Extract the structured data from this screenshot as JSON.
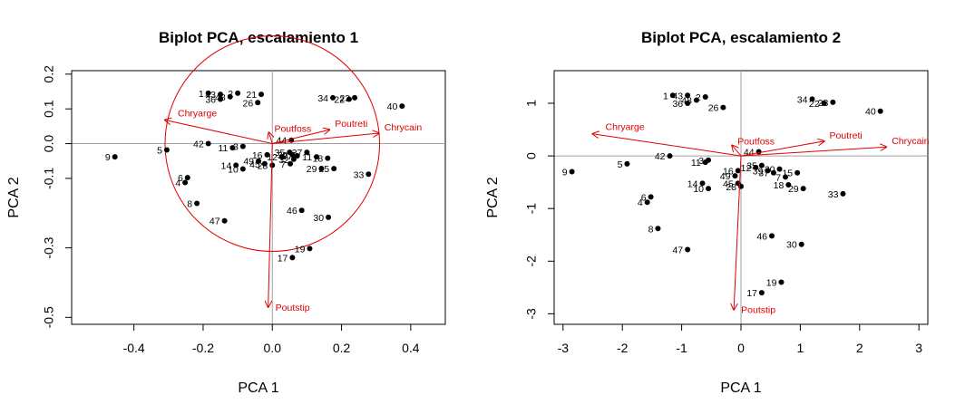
{
  "chart_data": [
    {
      "type": "scatter",
      "title": "Biplot PCA, escalamiento 1",
      "xlabel": "PCA  1",
      "ylabel": "PCA  2",
      "xlim": [
        -0.58,
        0.5
      ],
      "ylim": [
        -0.52,
        0.21
      ],
      "xticks": [
        -0.4,
        -0.2,
        0.0,
        0.2,
        0.4
      ],
      "xtick_labels": [
        "-0.4",
        "-0.2",
        "0.0",
        "0.2",
        "0.4"
      ],
      "yticks": [
        -0.5,
        -0.3,
        -0.1,
        0.0,
        0.1,
        0.2
      ],
      "ytick_labels": [
        "-0.5",
        "-0.3",
        "-0.1",
        "0.0",
        "0.1",
        "0.2"
      ],
      "grid": false,
      "reference_lines": {
        "x": 0,
        "y": 0
      },
      "circle": {
        "cx": 0,
        "cy": 0,
        "r": 0.31
      },
      "points": [
        {
          "label": "9",
          "x": -0.455,
          "y": -0.038
        },
        {
          "label": "5",
          "x": -0.305,
          "y": -0.018
        },
        {
          "label": "6",
          "x": -0.245,
          "y": -0.098
        },
        {
          "label": "4",
          "x": -0.252,
          "y": -0.112
        },
        {
          "label": "8",
          "x": -0.218,
          "y": -0.172
        },
        {
          "label": "47",
          "x": -0.138,
          "y": -0.222
        },
        {
          "label": "42",
          "x": -0.185,
          "y": 0.0
        },
        {
          "label": "11",
          "x": -0.115,
          "y": -0.012
        },
        {
          "label": "3",
          "x": -0.085,
          "y": -0.008
        },
        {
          "label": "14",
          "x": -0.105,
          "y": -0.062
        },
        {
          "label": "10",
          "x": -0.085,
          "y": -0.073
        },
        {
          "label": "16",
          "x": -0.015,
          "y": -0.032
        },
        {
          "label": "49",
          "x": -0.04,
          "y": -0.05
        },
        {
          "label": "45",
          "x": -0.022,
          "y": -0.058
        },
        {
          "label": "28",
          "x": 0.0,
          "y": -0.062
        },
        {
          "label": "12",
          "x": 0.028,
          "y": -0.038
        },
        {
          "label": "35",
          "x": 0.05,
          "y": -0.025
        },
        {
          "label": "39",
          "x": 0.058,
          "y": -0.032
        },
        {
          "label": "27",
          "x": 0.072,
          "y": -0.035
        },
        {
          "label": "32",
          "x": 0.062,
          "y": -0.045
        },
        {
          "label": "7",
          "x": 0.052,
          "y": -0.058
        },
        {
          "label": "37",
          "x": 0.1,
          "y": -0.025
        },
        {
          "label": "11",
          "x": 0.128,
          "y": -0.038
        },
        {
          "label": "29",
          "x": 0.142,
          "y": -0.072
        },
        {
          "label": "18",
          "x": 0.16,
          "y": -0.042
        },
        {
          "label": "25",
          "x": 0.178,
          "y": -0.072
        },
        {
          "label": "33",
          "x": 0.278,
          "y": -0.088
        },
        {
          "label": "44",
          "x": 0.055,
          "y": 0.01
        },
        {
          "label": "46",
          "x": 0.085,
          "y": -0.192
        },
        {
          "label": "30",
          "x": 0.162,
          "y": -0.212
        },
        {
          "label": "19",
          "x": 0.108,
          "y": -0.302
        },
        {
          "label": "17",
          "x": 0.058,
          "y": -0.328
        },
        {
          "label": "1",
          "x": -0.185,
          "y": 0.145
        },
        {
          "label": "43",
          "x": -0.15,
          "y": 0.142
        },
        {
          "label": "36",
          "x": -0.15,
          "y": 0.128
        },
        {
          "label": "48",
          "x": -0.122,
          "y": 0.135
        },
        {
          "label": "2",
          "x": -0.1,
          "y": 0.145
        },
        {
          "label": "26",
          "x": -0.042,
          "y": 0.118
        },
        {
          "label": "21",
          "x": -0.032,
          "y": 0.142
        },
        {
          "label": "34",
          "x": 0.175,
          "y": 0.132
        },
        {
          "label": "22",
          "x": 0.222,
          "y": 0.128
        },
        {
          "label": "23",
          "x": 0.238,
          "y": 0.132
        },
        {
          "label": "40",
          "x": 0.375,
          "y": 0.108
        }
      ],
      "vectors": [
        {
          "label": "Chryarge",
          "x": -0.31,
          "y": 0.068
        },
        {
          "label": "Poutfoss",
          "x": -0.01,
          "y": 0.032
        },
        {
          "label": "Poutreti",
          "x": 0.165,
          "y": 0.04
        },
        {
          "label": "Chrycain",
          "x": 0.308,
          "y": 0.03
        },
        {
          "label": "Poutstip",
          "x": -0.012,
          "y": -0.47
        }
      ]
    },
    {
      "type": "scatter",
      "title": "Biplot PCA, escalamiento 2",
      "xlabel": "PCA  1",
      "ylabel": "PCA  2",
      "xlim": [
        -3.15,
        3.15
      ],
      "ylim": [
        -3.2,
        1.62
      ],
      "xticks": [
        -3,
        -2,
        -1,
        0,
        1,
        2,
        3
      ],
      "xtick_labels": [
        "-3",
        "-2",
        "-1",
        "0",
        "1",
        "2",
        "3"
      ],
      "yticks": [
        -3,
        -2,
        -1,
        0,
        1
      ],
      "ytick_labels": [
        "-3",
        "-2",
        "-1",
        "0",
        "1"
      ],
      "grid": false,
      "reference_lines": {
        "x": 0,
        "y": 0
      },
      "points": [
        {
          "label": "9",
          "x": -2.85,
          "y": -0.3
        },
        {
          "label": "5",
          "x": -1.92,
          "y": -0.15
        },
        {
          "label": "42",
          "x": -1.2,
          "y": 0.0
        },
        {
          "label": "11",
          "x": -0.6,
          "y": -0.12
        },
        {
          "label": "3",
          "x": -0.55,
          "y": -0.08
        },
        {
          "label": "6",
          "x": -1.52,
          "y": -0.78
        },
        {
          "label": "4",
          "x": -1.58,
          "y": -0.88
        },
        {
          "label": "8",
          "x": -1.4,
          "y": -1.38
        },
        {
          "label": "47",
          "x": -0.9,
          "y": -1.78
        },
        {
          "label": "16",
          "x": -0.05,
          "y": -0.28
        },
        {
          "label": "49",
          "x": -0.1,
          "y": -0.38
        },
        {
          "label": "14",
          "x": -0.65,
          "y": -0.52
        },
        {
          "label": "10",
          "x": -0.55,
          "y": -0.62
        },
        {
          "label": "45",
          "x": -0.05,
          "y": -0.52
        },
        {
          "label": "28",
          "x": 0.0,
          "y": -0.58
        },
        {
          "label": "12",
          "x": 0.25,
          "y": -0.22
        },
        {
          "label": "35",
          "x": 0.35,
          "y": -0.18
        },
        {
          "label": "39",
          "x": 0.45,
          "y": -0.28
        },
        {
          "label": "37",
          "x": 0.55,
          "y": -0.32
        },
        {
          "label": "20",
          "x": 0.65,
          "y": -0.25
        },
        {
          "label": "7",
          "x": 0.75,
          "y": -0.4
        },
        {
          "label": "18",
          "x": 0.8,
          "y": -0.55
        },
        {
          "label": "15",
          "x": 0.95,
          "y": -0.32
        },
        {
          "label": "29",
          "x": 1.05,
          "y": -0.62
        },
        {
          "label": "33",
          "x": 1.72,
          "y": -0.72
        },
        {
          "label": "44",
          "x": 0.3,
          "y": 0.08
        },
        {
          "label": "46",
          "x": 0.52,
          "y": -1.52
        },
        {
          "label": "30",
          "x": 1.02,
          "y": -1.68
        },
        {
          "label": "19",
          "x": 0.68,
          "y": -2.4
        },
        {
          "label": "17",
          "x": 0.35,
          "y": -2.6
        },
        {
          "label": "1",
          "x": -1.15,
          "y": 1.15
        },
        {
          "label": "43",
          "x": -0.9,
          "y": 1.15
        },
        {
          "label": "36",
          "x": -0.9,
          "y": 1.0
        },
        {
          "label": "48",
          "x": -0.75,
          "y": 1.06
        },
        {
          "label": "2",
          "x": -0.6,
          "y": 1.12
        },
        {
          "label": "26",
          "x": -0.3,
          "y": 0.92
        },
        {
          "label": "34",
          "x": 1.2,
          "y": 1.08
        },
        {
          "label": "22",
          "x": 1.4,
          "y": 1.0
        },
        {
          "label": "23",
          "x": 1.55,
          "y": 1.02
        },
        {
          "label": "40",
          "x": 2.35,
          "y": 0.85
        }
      ],
      "vectors": [
        {
          "label": "Chryarge",
          "x": -2.5,
          "y": 0.42
        },
        {
          "label": "Poutfoss",
          "x": -0.15,
          "y": 0.2
        },
        {
          "label": "Poutreti",
          "x": 1.4,
          "y": 0.28
        },
        {
          "label": "Chrycain",
          "x": 2.45,
          "y": 0.17
        },
        {
          "label": "Poutstip",
          "x": -0.12,
          "y": -2.92
        }
      ]
    }
  ]
}
